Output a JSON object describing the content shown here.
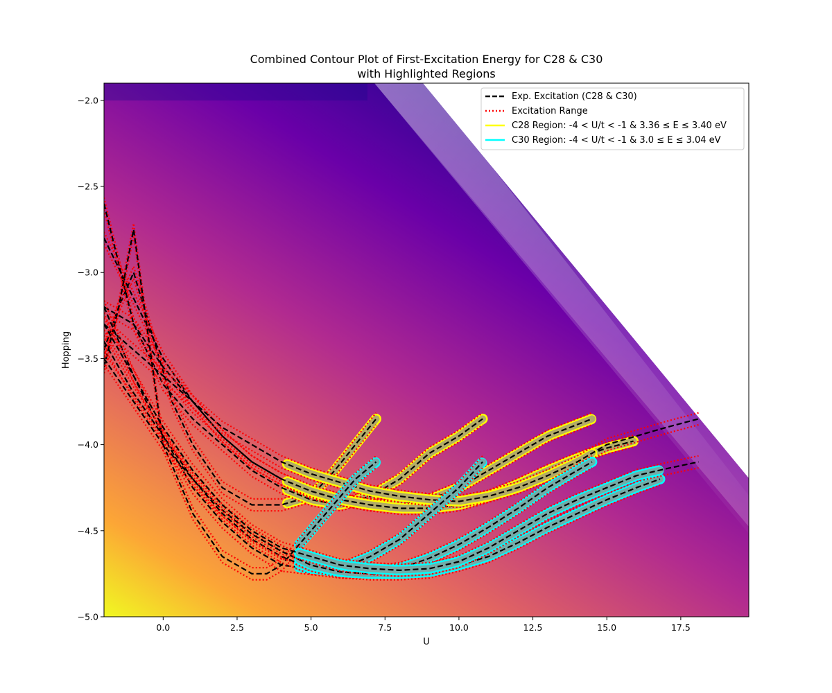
{
  "chart_data": {
    "type": "contour",
    "title_lines": [
      "Combined Contour Plot of First-Excitation Energy for C28 & C30",
      "with Highlighted Regions"
    ],
    "xlabel": "U",
    "ylabel": "Hopping",
    "xlim": [
      -2.0,
      19.8
    ],
    "ylim": [
      -5.0,
      -1.9
    ],
    "x_ticks": [
      0.0,
      2.5,
      5.0,
      7.5,
      10.0,
      12.5,
      15.0,
      17.5
    ],
    "x_tick_labels": [
      "0.0",
      "2.5",
      "5.0",
      "7.5",
      "10.0",
      "12.5",
      "15.0",
      "17.5"
    ],
    "y_ticks": [
      -2.0,
      -2.5,
      -3.0,
      -3.5,
      -4.0,
      -4.5,
      -5.0
    ],
    "y_tick_labels": [
      "−2.0",
      "−2.5",
      "−3.0",
      "−3.5",
      "−4.0",
      "−4.5",
      "−5.0"
    ],
    "legend_position": "upper-right",
    "legend": [
      {
        "label": "Exp. Excitation (C28 & C30)",
        "color": "#000000",
        "style": "dashed"
      },
      {
        "label": "Excitation Range",
        "color": "#ff0000",
        "style": "dotted"
      },
      {
        "label": "C28 Region: -4 < U/t < -1 & 3.36 ≤ E ≤ 3.40 eV",
        "color": "#ffff00",
        "style": "solid"
      },
      {
        "label": "C30 Region: -4 < U/t < -1 & 3.0 ≤ E ≤ 3.04 eV",
        "color": "#00ffff",
        "style": "solid"
      }
    ],
    "colormap": "plasma",
    "series": [
      {
        "group": "C28",
        "x": [
          -2.0,
          -1.5,
          -1.0,
          -0.3,
          0.3,
          1.0,
          2.0,
          3.0,
          4.0,
          5.0,
          5.8,
          6.5,
          7.2
        ],
        "y": [
          -3.45,
          -3.2,
          -3.0,
          -3.4,
          -3.75,
          -4.0,
          -4.25,
          -4.35,
          -4.35,
          -4.3,
          -4.15,
          -4.0,
          -3.85
        ],
        "region": [
          4.2,
          7.2
        ]
      },
      {
        "group": "C28",
        "x": [
          -2.0,
          -1.0,
          0.0,
          1.0,
          2.0,
          3.0,
          4.0,
          5.0,
          6.0,
          7.0,
          8.0,
          9.0,
          10.0,
          10.8
        ],
        "y": [
          -2.6,
          -3.3,
          -3.65,
          -3.85,
          -4.0,
          -4.15,
          -4.25,
          -4.32,
          -4.35,
          -4.3,
          -4.2,
          -4.05,
          -3.95,
          -3.85
        ],
        "region": [
          4.2,
          10.8
        ]
      },
      {
        "group": "C28",
        "x": [
          -2.0,
          -1.0,
          0.0,
          1.0,
          2.0,
          3.0,
          4.0,
          5.0,
          6.0,
          7.0,
          8.0,
          9.0,
          10.0,
          11.0,
          12.0,
          13.0,
          14.5
        ],
        "y": [
          -2.8,
          -3.15,
          -3.5,
          -3.75,
          -3.95,
          -4.1,
          -4.2,
          -4.28,
          -4.32,
          -4.35,
          -4.35,
          -4.32,
          -4.25,
          -4.15,
          -4.05,
          -3.95,
          -3.85
        ],
        "region": [
          4.2,
          14.5
        ]
      },
      {
        "group": "C28",
        "x": [
          -2.0,
          -1.0,
          0.0,
          1.0,
          2.0,
          3.0,
          4.0,
          5.0,
          6.0,
          7.0,
          8.0,
          9.0,
          10.0,
          11.0,
          12.0,
          13.0,
          14.0,
          15.0,
          15.9
        ],
        "y": [
          -3.2,
          -3.3,
          -3.55,
          -3.75,
          -3.95,
          -4.1,
          -4.2,
          -4.27,
          -4.32,
          -4.35,
          -4.37,
          -4.37,
          -4.35,
          -4.3,
          -4.23,
          -4.15,
          -4.08,
          -4.02,
          -3.98
        ],
        "region": [
          4.2,
          15.9
        ]
      },
      {
        "group": "C28",
        "x": [
          -2.0,
          -1.0,
          0.0,
          1.0,
          2.0,
          3.0,
          4.0,
          5.0,
          6.0,
          7.0,
          8.0,
          9.0,
          10.0,
          11.0,
          12.0,
          13.0,
          14.0,
          15.0,
          16.0,
          17.0,
          18.1
        ],
        "y": [
          -3.3,
          -3.45,
          -3.6,
          -3.75,
          -3.9,
          -4.0,
          -4.1,
          -4.17,
          -4.22,
          -4.27,
          -4.3,
          -4.32,
          -4.33,
          -4.3,
          -4.25,
          -4.18,
          -4.1,
          -4.0,
          -3.95,
          -3.9,
          -3.85
        ],
        "region": [
          4.2,
          14.5
        ]
      },
      {
        "group": "C30",
        "x": [
          -2.0,
          -1.5,
          -1.0,
          0.0,
          1.0,
          2.0,
          3.0,
          3.5,
          4.0,
          4.5,
          5.0,
          5.5,
          6.0,
          6.5,
          7.2
        ],
        "y": [
          -3.55,
          -3.2,
          -2.75,
          -4.0,
          -4.4,
          -4.65,
          -4.75,
          -4.75,
          -4.7,
          -4.6,
          -4.5,
          -4.4,
          -4.3,
          -4.2,
          -4.1
        ],
        "region": [
          4.6,
          7.2
        ]
      },
      {
        "group": "C30",
        "x": [
          -2.0,
          -1.0,
          0.0,
          1.0,
          2.0,
          3.0,
          4.0,
          5.0,
          6.0,
          7.0,
          8.0,
          9.0,
          10.0,
          10.8
        ],
        "y": [
          -3.2,
          -3.6,
          -3.95,
          -4.25,
          -4.45,
          -4.6,
          -4.7,
          -4.72,
          -4.72,
          -4.65,
          -4.55,
          -4.4,
          -4.25,
          -4.1
        ],
        "region": [
          4.6,
          10.8
        ]
      },
      {
        "group": "C30",
        "x": [
          -2.0,
          -1.0,
          0.0,
          1.0,
          2.0,
          3.0,
          4.0,
          5.0,
          6.0,
          7.0,
          8.0,
          9.0,
          10.0,
          11.0,
          12.0,
          13.0,
          14.5
        ],
        "y": [
          -3.4,
          -3.7,
          -3.95,
          -4.2,
          -4.4,
          -4.55,
          -4.65,
          -4.72,
          -4.74,
          -4.74,
          -4.72,
          -4.66,
          -4.58,
          -4.48,
          -4.37,
          -4.25,
          -4.1
        ],
        "region": [
          4.6,
          14.5
        ]
      },
      {
        "group": "C30",
        "x": [
          -2.0,
          -1.0,
          0.0,
          1.0,
          2.0,
          3.0,
          4.0,
          5.0,
          6.0,
          7.0,
          8.0,
          9.0,
          10.0,
          11.0,
          12.0,
          13.0,
          14.0,
          15.0,
          16.0,
          16.8
        ],
        "y": [
          -3.5,
          -3.75,
          -4.0,
          -4.2,
          -4.38,
          -4.52,
          -4.62,
          -4.7,
          -4.74,
          -4.75,
          -4.75,
          -4.74,
          -4.7,
          -4.65,
          -4.57,
          -4.48,
          -4.4,
          -4.32,
          -4.25,
          -4.2
        ],
        "region": [
          4.6,
          16.8
        ]
      },
      {
        "group": "C30",
        "x": [
          -2.0,
          -1.0,
          0.0,
          1.0,
          2.0,
          3.0,
          4.0,
          5.0,
          6.0,
          7.0,
          8.0,
          9.0,
          10.0,
          11.0,
          12.0,
          13.0,
          14.0,
          15.0,
          16.0,
          17.0,
          18.1
        ],
        "y": [
          -3.3,
          -3.6,
          -3.9,
          -4.15,
          -4.35,
          -4.5,
          -4.6,
          -4.65,
          -4.7,
          -4.72,
          -4.73,
          -4.72,
          -4.68,
          -4.6,
          -4.5,
          -4.4,
          -4.32,
          -4.25,
          -4.18,
          -4.14,
          -4.1
        ],
        "region": [
          4.6,
          16.8
        ]
      }
    ]
  }
}
